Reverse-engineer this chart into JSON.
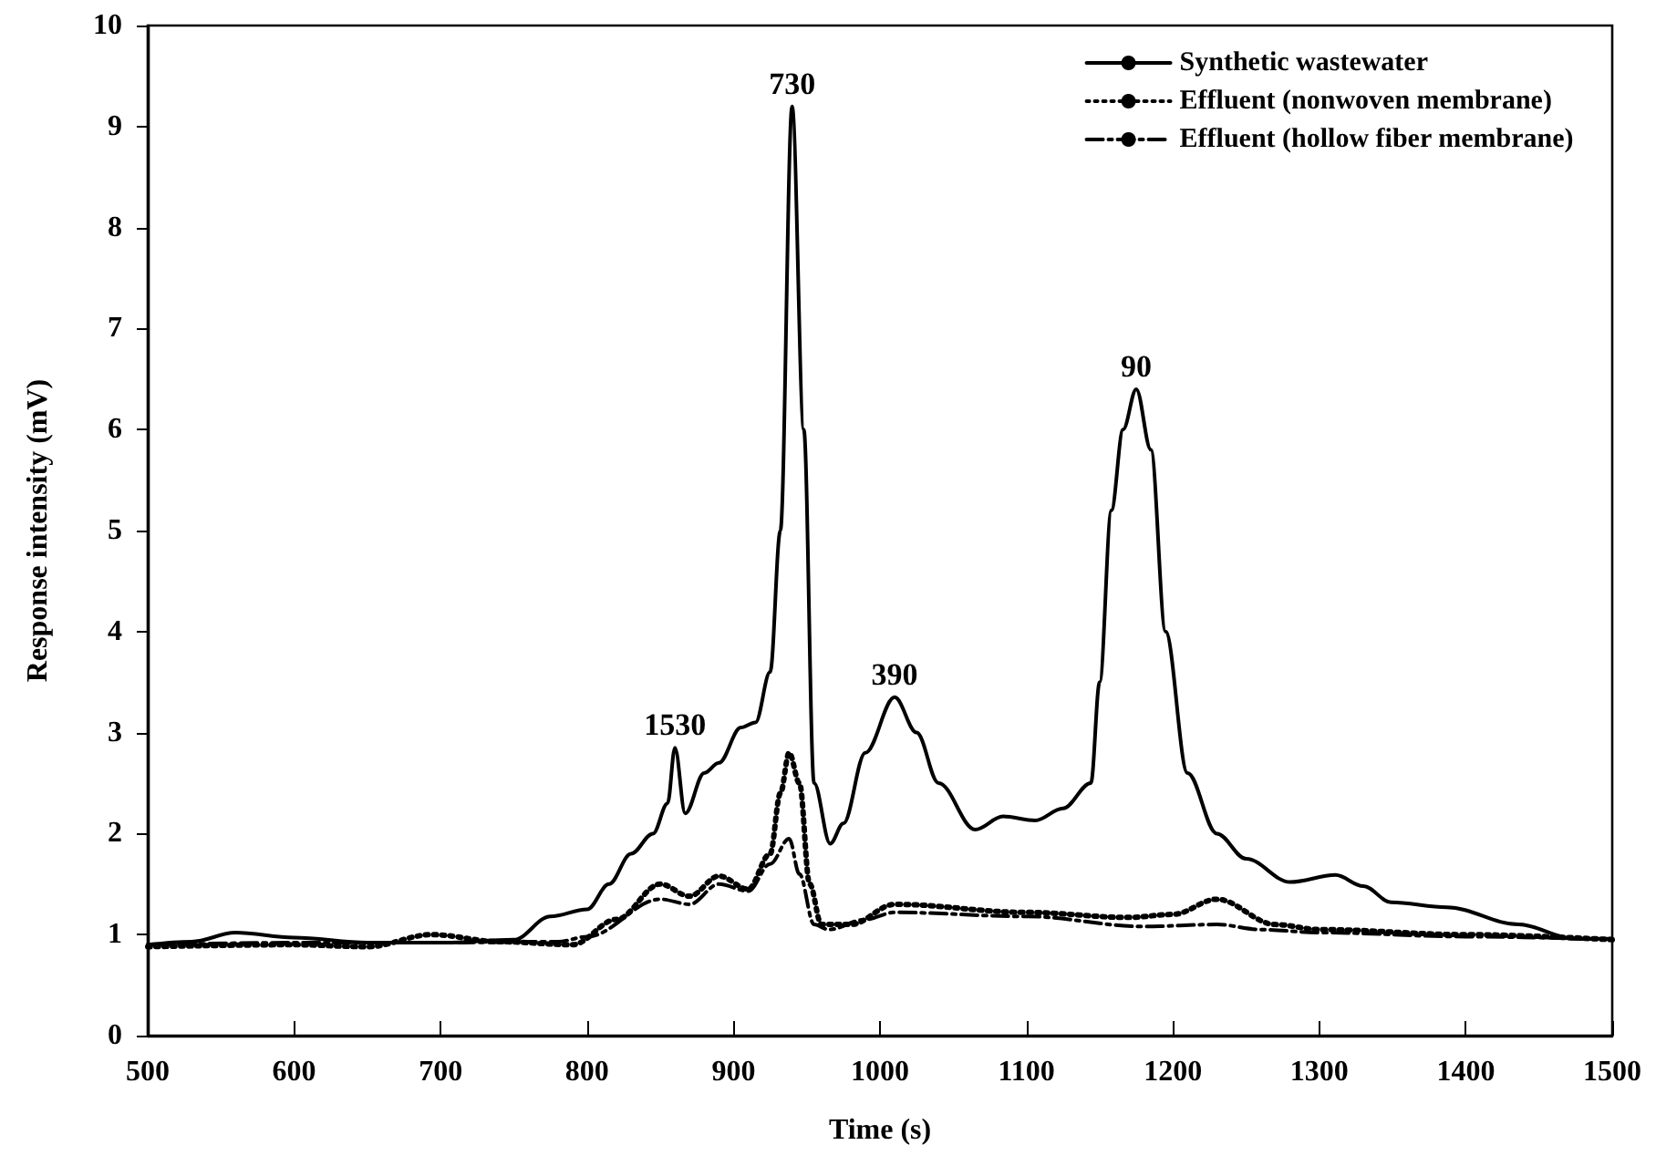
{
  "chart_data": {
    "type": "line",
    "xlabel": "Time (s)",
    "ylabel": "Response intensity (mV)",
    "xlim": [
      500,
      1500
    ],
    "xticks": [
      500,
      600,
      700,
      800,
      900,
      1000,
      1100,
      1200,
      1300,
      1400,
      1500
    ],
    "ylim": [
      0,
      10
    ],
    "yticks": [
      0,
      1,
      2,
      3,
      4,
      5,
      6,
      7,
      8,
      9,
      10
    ],
    "grid": false,
    "legend": "top right",
    "annotations": [
      {
        "text": "1530",
        "x": 860,
        "y": 2.85
      },
      {
        "text": "730",
        "x": 940,
        "y": 9.2
      },
      {
        "text": "390",
        "x": 1010,
        "y": 3.35
      },
      {
        "text": "90",
        "x": 1175,
        "y": 6.4
      }
    ],
    "series": [
      {
        "name": "Synthetic wastewater",
        "color": "#000000",
        "line_style": "solid",
        "x": [
          500,
          530,
          560,
          600,
          650,
          700,
          750,
          775,
          800,
          815,
          830,
          845,
          855,
          860,
          867,
          880,
          890,
          905,
          915,
          925,
          932,
          940,
          948,
          955,
          966,
          975,
          990,
          1010,
          1025,
          1040,
          1065,
          1084,
          1106,
          1125,
          1144,
          1150,
          1158,
          1166,
          1175,
          1185,
          1195,
          1210,
          1230,
          1250,
          1280,
          1311,
          1330,
          1349,
          1387,
          1436,
          1474,
          1500
        ],
        "values": [
          0.9,
          0.93,
          1.02,
          0.97,
          0.92,
          0.92,
          0.95,
          1.18,
          1.25,
          1.5,
          1.8,
          2.0,
          2.3,
          2.85,
          2.2,
          2.6,
          2.7,
          3.05,
          3.1,
          3.6,
          5.0,
          9.2,
          6.0,
          2.5,
          1.9,
          2.1,
          2.8,
          3.35,
          3.0,
          2.5,
          2.04,
          2.17,
          2.13,
          2.25,
          2.5,
          3.5,
          5.2,
          6.0,
          6.4,
          5.8,
          4.0,
          2.6,
          2.0,
          1.75,
          1.52,
          1.59,
          1.48,
          1.32,
          1.27,
          1.1,
          0.96,
          0.96
        ]
      },
      {
        "name": "Effluent (nonwoven membrane)",
        "color": "#000000",
        "line_style": "dotted",
        "x": [
          500,
          600,
          650,
          694,
          740,
          790,
          820,
          850,
          870,
          890,
          910,
          925,
          932,
          938,
          945,
          952,
          960,
          980,
          1010,
          1100,
          1170,
          1200,
          1230,
          1270,
          1300,
          1400,
          1500
        ],
        "values": [
          0.88,
          0.9,
          0.88,
          1.0,
          0.93,
          0.9,
          1.15,
          1.5,
          1.38,
          1.58,
          1.45,
          1.8,
          2.4,
          2.8,
          2.5,
          1.5,
          1.1,
          1.1,
          1.3,
          1.22,
          1.17,
          1.2,
          1.35,
          1.1,
          1.05,
          1.0,
          0.95
        ]
      },
      {
        "name": "Effluent (hollow fiber membrane)",
        "color": "#000000",
        "line_style": "dashdot",
        "x": [
          500,
          600,
          700,
          780,
          800,
          850,
          870,
          890,
          910,
          925,
          938,
          945,
          955,
          965,
          990,
          1010,
          1100,
          1180,
          1230,
          1260,
          1300,
          1400,
          1500
        ],
        "values": [
          0.9,
          0.92,
          0.92,
          0.93,
          0.98,
          1.35,
          1.3,
          1.5,
          1.43,
          1.7,
          1.95,
          1.6,
          1.1,
          1.05,
          1.15,
          1.22,
          1.18,
          1.08,
          1.1,
          1.05,
          1.02,
          0.98,
          0.95
        ]
      }
    ]
  }
}
